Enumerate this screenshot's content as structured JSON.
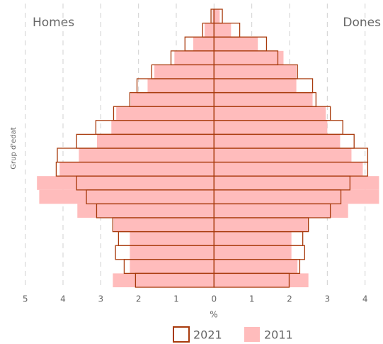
{
  "chart_data": {
    "type": "pyramid",
    "left_label": "Homes",
    "right_label": "Dones",
    "y_label": "Grup d'edat",
    "x_label": "%",
    "categories": [
      null,
      null,
      null,
      null,
      null,
      null,
      null,
      null,
      null,
      null,
      null,
      null,
      null,
      null,
      null,
      null,
      null,
      null,
      null,
      null
    ],
    "series": [
      {
        "name": "2011",
        "color": "#ffbcbc",
        "style": "filled",
        "left": [
          -0.04,
          -0.25,
          -0.55,
          -1.05,
          -1.58,
          -1.76,
          -2.21,
          -2.59,
          -2.72,
          -3.1,
          -3.58,
          -4.09,
          -4.69,
          -4.63,
          -3.62,
          -2.66,
          -2.23,
          -2.23,
          -2.23,
          -2.68
        ],
        "right": [
          0.15,
          0.45,
          1.16,
          1.84,
          2.18,
          2.18,
          2.61,
          2.96,
          3.0,
          3.34,
          3.64,
          3.94,
          4.37,
          4.37,
          3.55,
          2.5,
          2.05,
          2.05,
          2.21,
          2.5
        ]
      },
      {
        "name": "2021",
        "color": "#a83a0c",
        "style": "outline",
        "left": [
          -0.08,
          -0.3,
          -0.77,
          -1.14,
          -1.65,
          -2.04,
          -2.23,
          -2.66,
          -3.13,
          -3.64,
          -4.15,
          -4.18,
          -3.64,
          -3.38,
          -3.11,
          -2.68,
          -2.53,
          -2.61,
          -2.38,
          -2.08
        ],
        "right": [
          0.22,
          0.68,
          1.39,
          1.69,
          2.21,
          2.61,
          2.7,
          3.08,
          3.41,
          3.71,
          4.07,
          4.07,
          3.6,
          3.36,
          3.08,
          2.5,
          2.35,
          2.4,
          2.27,
          1.99
        ]
      }
    ],
    "xlim": [
      -5.2,
      4.4
    ],
    "xticks": [
      {
        "value": -5,
        "label": "5"
      },
      {
        "value": -4,
        "label": "4"
      },
      {
        "value": -3,
        "label": "3"
      },
      {
        "value": -2,
        "label": "2"
      },
      {
        "value": -1,
        "label": "1"
      },
      0,
      1,
      2,
      3,
      4
    ],
    "grid": true
  }
}
